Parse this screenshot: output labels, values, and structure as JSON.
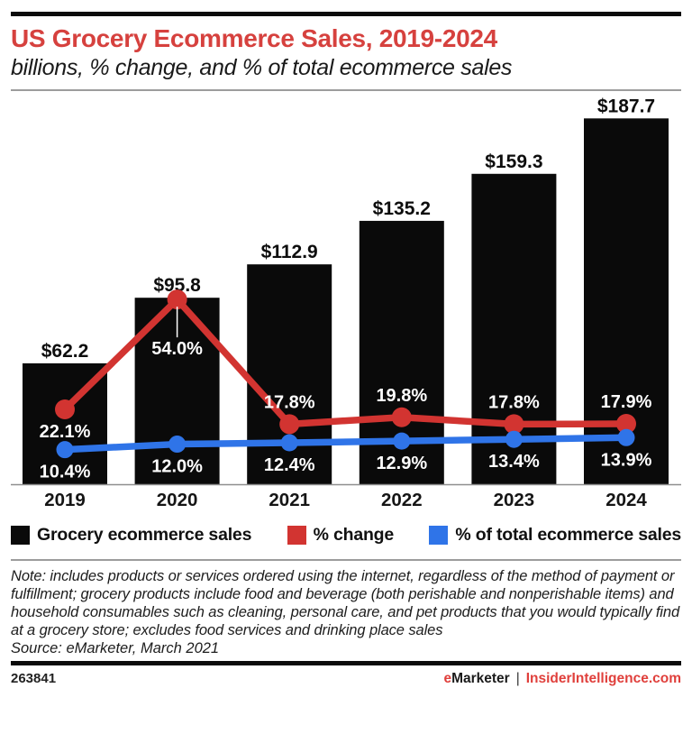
{
  "header": {
    "title": "US Grocery Ecommerce Sales, 2019-2024",
    "subtitle": "billions, % change, and % of total ecommerce sales"
  },
  "chart_data": {
    "type": "combo-bar-line",
    "categories": [
      "2019",
      "2020",
      "2021",
      "2022",
      "2023",
      "2024"
    ],
    "series": [
      {
        "name": "Grocery ecommerce sales",
        "type": "bar",
        "color": "#0a0a0a",
        "unit": "billions of US dollars",
        "values": [
          62.2,
          95.8,
          112.9,
          135.2,
          159.3,
          187.7
        ],
        "labels": [
          "$62.2",
          "$95.8",
          "$112.9",
          "$135.2",
          "$159.3",
          "$187.7"
        ]
      },
      {
        "name": "% change",
        "type": "line",
        "color": "#d23431",
        "unit": "percent",
        "values": [
          22.1,
          54.0,
          17.8,
          19.8,
          17.8,
          17.9
        ],
        "labels": [
          "22.1%",
          "54.0%",
          "17.8%",
          "19.8%",
          "17.8%",
          "17.9%"
        ]
      },
      {
        "name": "% of total ecommerce sales",
        "type": "line",
        "color": "#2f74e8",
        "unit": "percent",
        "values": [
          10.4,
          12.0,
          12.4,
          12.9,
          13.4,
          13.9
        ],
        "labels": [
          "10.4%",
          "12.0%",
          "12.4%",
          "12.9%",
          "13.4%",
          "13.9%"
        ]
      }
    ],
    "title": "US Grocery Ecommerce Sales, 2019-2024",
    "xlabel": "",
    "ylabel": "",
    "bar_axis_range": [
      0,
      200
    ],
    "grid": false,
    "legend_position": "bottom",
    "label_text_color": "#ffffff",
    "bar_label_color": "#0d0d0d"
  },
  "legend": {
    "items": [
      "Grocery ecommerce sales",
      "% change",
      "% of total ecommerce sales"
    ]
  },
  "note": {
    "text": "Note: includes products or services ordered using the internet, regardless of the method of payment or fulfillment; grocery products include food and beverage (both perishable and nonperishable items) and household consumables such as cleaning, personal care, and pet products that you would typically find at a grocery store; excludes food services and drinking place sales",
    "source": "Source: eMarketer, March 2021"
  },
  "footer": {
    "chart_id": "263841",
    "brand_e": "e",
    "brand_rest": "Marketer",
    "separator": "|",
    "site": "InsiderIntelligence.com"
  },
  "colors": {
    "title_red": "#d6413e",
    "line_red": "#d23431",
    "line_blue": "#2f74e8",
    "bar_black": "#0a0a0a",
    "footer_red": "#e0403c",
    "axis_gray": "#8f8f8f"
  }
}
